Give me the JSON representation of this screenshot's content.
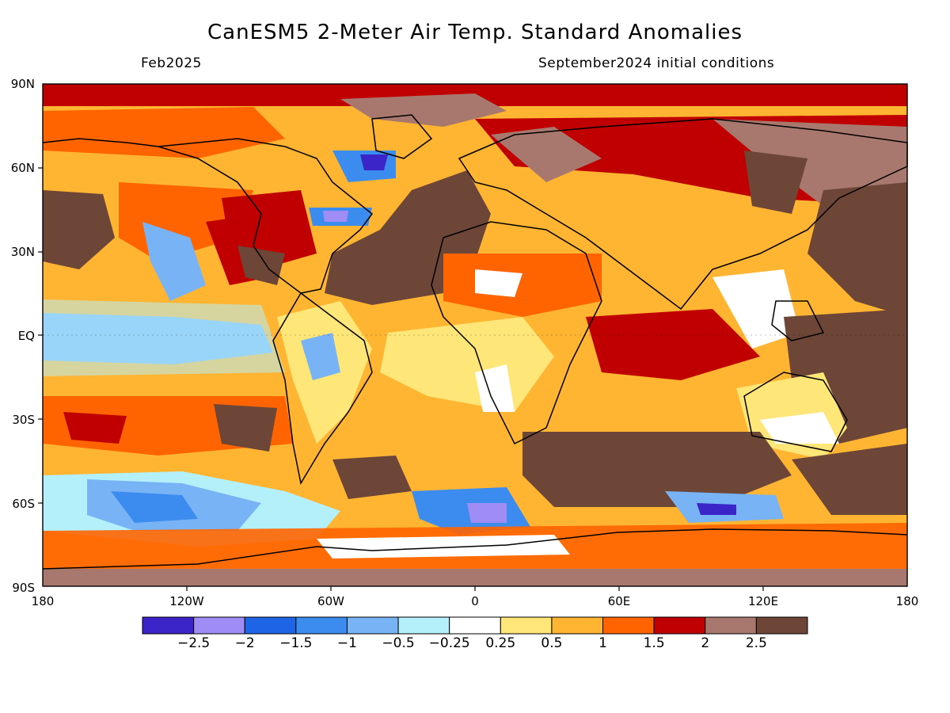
{
  "title": "CanESM5 2-Meter Air Temp. Standard Anomalies",
  "subtitle_left": "Feb2025",
  "subtitle_right": "September2024 initial conditions",
  "axes": {
    "y_ticks": [
      "90N",
      "60N",
      "30N",
      "EQ",
      "30S",
      "60S",
      "90S"
    ],
    "x_ticks": [
      "180",
      "120W",
      "60W",
      "0",
      "60E",
      "120E",
      "180"
    ]
  },
  "colorbar": {
    "colors": [
      "#3b24c8",
      "#a08cf5",
      "#1e64e6",
      "#3c8cf0",
      "#78b4f5",
      "#b4f0fa",
      "#ffffff",
      "#ffe678",
      "#ffb432",
      "#ff6400",
      "#c00000",
      "#a8786e",
      "#6e4638"
    ],
    "labels": [
      "-2.5",
      "-2",
      "-1.5",
      "-1",
      "-0.5",
      "-0.25",
      "0.25",
      "0.5",
      "1",
      "1.5",
      "2",
      "2.5"
    ]
  }
}
